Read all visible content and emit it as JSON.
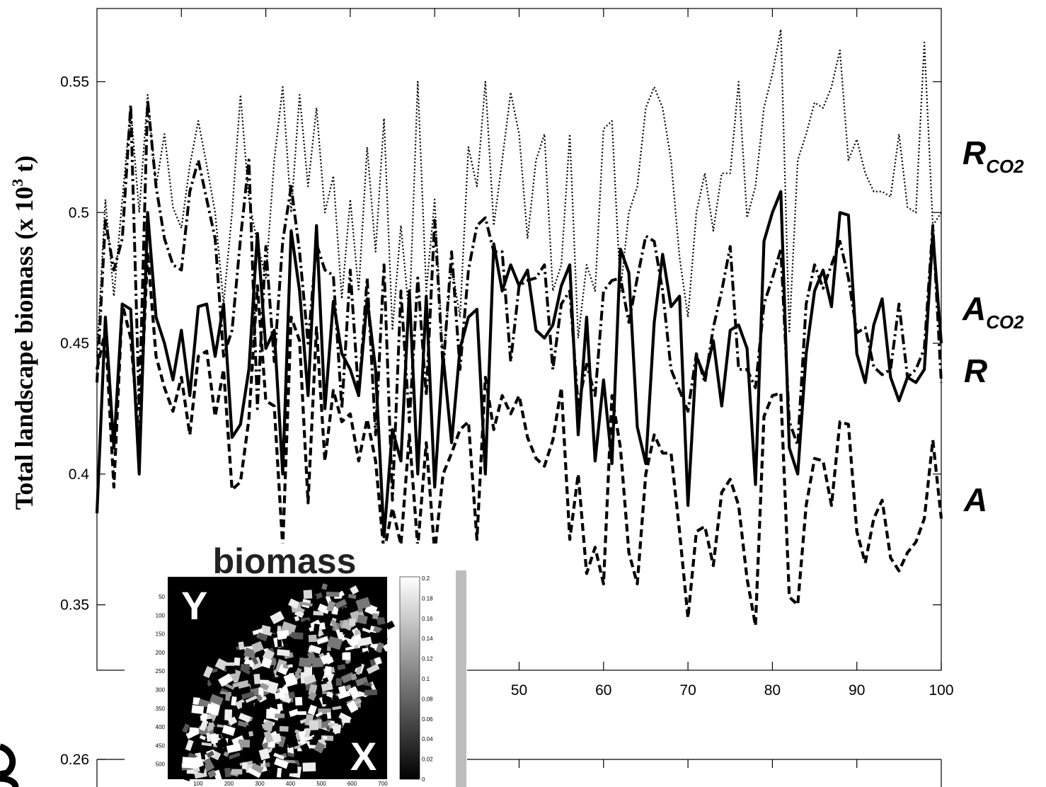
{
  "chart_data": [
    {
      "type": "line",
      "title": "",
      "xlabel": "",
      "ylabel": "Total landscape biomass (x 10",
      "ylabel_superscript": "3",
      "ylabel_tail": " t)",
      "xlim": [
        0,
        100
      ],
      "ylim": [
        0.325,
        0.578
      ],
      "grid": false,
      "y_ticks": [
        "0.35",
        "0.4",
        "0.45",
        "0.5",
        "0.55"
      ],
      "y_tick_values": [
        0.35,
        0.4,
        0.45,
        0.5,
        0.55
      ],
      "x_ticks": [
        "50",
        "60",
        "70",
        "80",
        "90",
        "100"
      ],
      "x_tick_values": [
        50,
        60,
        70,
        80,
        90,
        100
      ],
      "series": [
        {
          "name": "R",
          "name_sub": "CO2",
          "style": "dotted",
          "x": [
            0,
            1,
            2,
            3,
            4,
            5,
            6,
            7,
            8,
            9,
            10,
            11,
            12,
            13,
            14,
            15,
            16,
            17,
            18,
            19,
            20,
            21,
            22,
            23,
            24,
            25,
            26,
            27,
            28,
            29,
            30,
            31,
            32,
            33,
            34,
            35,
            36,
            37,
            38,
            39,
            40,
            41,
            42,
            43,
            44,
            45,
            46,
            47,
            48,
            49,
            50,
            51,
            52,
            53,
            54,
            55,
            56,
            57,
            58,
            59,
            60,
            61,
            62,
            63,
            64,
            65,
            66,
            67,
            68,
            69,
            70,
            71,
            72,
            73,
            74,
            75,
            76,
            77,
            78,
            79,
            80,
            81,
            82,
            83,
            84,
            85,
            86,
            87,
            88,
            89,
            90,
            91,
            92,
            93,
            94,
            95,
            96,
            97,
            98,
            99,
            100
          ],
          "y": [
            0.445,
            0.505,
            0.468,
            0.505,
            0.54,
            0.5,
            0.545,
            0.51,
            0.53,
            0.502,
            0.494,
            0.518,
            0.535,
            0.518,
            0.5,
            0.465,
            0.5,
            0.545,
            0.505,
            0.488,
            0.475,
            0.52,
            0.548,
            0.5,
            0.545,
            0.51,
            0.54,
            0.5,
            0.514,
            0.467,
            0.505,
            0.47,
            0.525,
            0.485,
            0.536,
            0.455,
            0.495,
            0.46,
            0.55,
            0.47,
            0.505,
            0.442,
            0.48,
            0.46,
            0.525,
            0.51,
            0.55,
            0.495,
            0.52,
            0.546,
            0.53,
            0.49,
            0.52,
            0.53,
            0.47,
            0.48,
            0.53,
            0.452,
            0.48,
            0.47,
            0.532,
            0.535,
            0.47,
            0.5,
            0.51,
            0.54,
            0.548,
            0.54,
            0.52,
            0.483,
            0.46,
            0.5,
            0.515,
            0.493,
            0.515,
            0.515,
            0.55,
            0.498,
            0.51,
            0.54,
            0.553,
            0.57,
            0.454,
            0.52,
            0.53,
            0.542,
            0.54,
            0.548,
            0.562,
            0.52,
            0.528,
            0.515,
            0.508,
            0.508,
            0.506,
            0.53,
            0.502,
            0.5,
            0.565,
            0.495,
            0.5
          ]
        },
        {
          "name": "A",
          "name_sub": "CO2",
          "style": "dashdot",
          "x": [
            0,
            1,
            2,
            3,
            4,
            5,
            6,
            7,
            8,
            9,
            10,
            11,
            12,
            13,
            14,
            15,
            16,
            17,
            18,
            19,
            20,
            21,
            22,
            23,
            24,
            25,
            26,
            27,
            28,
            29,
            30,
            31,
            32,
            33,
            34,
            35,
            36,
            37,
            38,
            39,
            40,
            41,
            42,
            43,
            44,
            45,
            46,
            47,
            48,
            49,
            50,
            51,
            52,
            53,
            54,
            55,
            56,
            57,
            58,
            59,
            60,
            61,
            62,
            63,
            64,
            65,
            66,
            67,
            68,
            69,
            70,
            71,
            72,
            73,
            74,
            75,
            76,
            77,
            78,
            79,
            80,
            81,
            82,
            83,
            84,
            85,
            86,
            87,
            88,
            89,
            90,
            91,
            92,
            93,
            94,
            95,
            96,
            97,
            98,
            99,
            100
          ],
          "y": [
            0.435,
            0.497,
            0.478,
            0.49,
            0.541,
            0.425,
            0.543,
            0.51,
            0.49,
            0.48,
            0.478,
            0.508,
            0.52,
            0.505,
            0.49,
            0.445,
            0.455,
            0.49,
            0.52,
            0.425,
            0.487,
            0.443,
            0.489,
            0.51,
            0.485,
            0.45,
            0.488,
            0.478,
            0.476,
            0.425,
            0.478,
            0.43,
            0.475,
            0.415,
            0.48,
            0.39,
            0.47,
            0.42,
            0.475,
            0.43,
            0.497,
            0.44,
            0.485,
            0.44,
            0.478,
            0.495,
            0.498,
            0.485,
            0.485,
            0.443,
            0.472,
            0.474,
            0.475,
            0.48,
            0.44,
            0.465,
            0.47,
            0.426,
            0.442,
            0.43,
            0.47,
            0.474,
            0.475,
            0.458,
            0.475,
            0.491,
            0.489,
            0.47,
            0.44,
            0.432,
            0.424,
            0.446,
            0.435,
            0.456,
            0.47,
            0.487,
            0.44,
            0.44,
            0.433,
            0.465,
            0.475,
            0.486,
            0.42,
            0.411,
            0.465,
            0.48,
            0.471,
            0.48,
            0.489,
            0.475,
            0.454,
            0.456,
            0.441,
            0.438,
            0.44,
            0.465,
            0.437,
            0.44,
            0.448,
            0.495,
            0.435
          ]
        },
        {
          "name": "R",
          "name_sub": "",
          "style": "solid",
          "x": [
            0,
            1,
            2,
            3,
            4,
            5,
            6,
            7,
            8,
            9,
            10,
            11,
            12,
            13,
            14,
            15,
            16,
            17,
            18,
            19,
            20,
            21,
            22,
            23,
            24,
            25,
            26,
            27,
            28,
            29,
            30,
            31,
            32,
            33,
            34,
            35,
            36,
            37,
            38,
            39,
            40,
            41,
            42,
            43,
            44,
            45,
            46,
            47,
            48,
            49,
            50,
            51,
            52,
            53,
            54,
            55,
            56,
            57,
            58,
            59,
            60,
            61,
            62,
            63,
            64,
            65,
            66,
            67,
            68,
            69,
            70,
            71,
            72,
            73,
            74,
            75,
            76,
            77,
            78,
            79,
            80,
            81,
            82,
            83,
            84,
            85,
            86,
            87,
            88,
            89,
            90,
            91,
            92,
            93,
            94,
            95,
            96,
            97,
            98,
            99,
            100
          ],
          "y": [
            0.385,
            0.46,
            0.41,
            0.465,
            0.463,
            0.4,
            0.5,
            0.46,
            0.45,
            0.436,
            0.455,
            0.43,
            0.464,
            0.465,
            0.445,
            0.465,
            0.414,
            0.419,
            0.44,
            0.492,
            0.448,
            0.455,
            0.4,
            0.493,
            0.47,
            0.43,
            0.495,
            0.425,
            0.466,
            0.446,
            0.44,
            0.43,
            0.467,
            0.44,
            0.376,
            0.417,
            0.405,
            0.47,
            0.4,
            0.468,
            0.395,
            0.445,
            0.412,
            0.448,
            0.46,
            0.463,
            0.4,
            0.488,
            0.47,
            0.48,
            0.472,
            0.478,
            0.455,
            0.452,
            0.457,
            0.472,
            0.48,
            0.415,
            0.46,
            0.405,
            0.436,
            0.404,
            0.486,
            0.477,
            0.418,
            0.404,
            0.458,
            0.484,
            0.464,
            0.468,
            0.388,
            0.445,
            0.437,
            0.451,
            0.426,
            0.455,
            0.457,
            0.448,
            0.396,
            0.489,
            0.5,
            0.508,
            0.41,
            0.4,
            0.446,
            0.47,
            0.478,
            0.464,
            0.5,
            0.499,
            0.446,
            0.435,
            0.457,
            0.467,
            0.437,
            0.428,
            0.437,
            0.435,
            0.44,
            0.492,
            0.45
          ]
        },
        {
          "name": "A",
          "name_sub": "",
          "style": "dashed",
          "x": [
            0,
            1,
            2,
            3,
            4,
            5,
            6,
            7,
            8,
            9,
            10,
            11,
            12,
            13,
            14,
            15,
            16,
            17,
            18,
            19,
            20,
            21,
            22,
            23,
            24,
            25,
            26,
            27,
            28,
            29,
            30,
            31,
            32,
            33,
            34,
            35,
            36,
            37,
            38,
            39,
            40,
            41,
            42,
            43,
            44,
            45,
            46,
            47,
            48,
            49,
            50,
            51,
            52,
            53,
            54,
            55,
            56,
            57,
            58,
            59,
            60,
            61,
            62,
            63,
            64,
            65,
            66,
            67,
            68,
            69,
            70,
            71,
            72,
            73,
            74,
            75,
            76,
            77,
            78,
            79,
            80,
            81,
            82,
            83,
            84,
            85,
            86,
            87,
            88,
            89,
            90,
            91,
            92,
            93,
            94,
            95,
            96,
            97,
            98,
            99,
            100
          ],
          "y": [
            0.44,
            0.455,
            0.395,
            0.465,
            0.452,
            0.413,
            0.485,
            0.445,
            0.433,
            0.424,
            0.437,
            0.415,
            0.445,
            0.447,
            0.422,
            0.44,
            0.394,
            0.397,
            0.421,
            0.472,
            0.428,
            0.426,
            0.372,
            0.46,
            0.451,
            0.389,
            0.456,
            0.405,
            0.432,
            0.42,
            0.423,
            0.405,
            0.421,
            0.405,
            0.37,
            0.387,
            0.373,
            0.415,
            0.372,
            0.412,
            0.37,
            0.4,
            0.408,
            0.417,
            0.42,
            0.375,
            0.437,
            0.417,
            0.43,
            0.423,
            0.43,
            0.414,
            0.406,
            0.403,
            0.413,
            0.433,
            0.375,
            0.4,
            0.362,
            0.372,
            0.358,
            0.43,
            0.41,
            0.37,
            0.358,
            0.4,
            0.415,
            0.408,
            0.408,
            0.378,
            0.345,
            0.378,
            0.38,
            0.365,
            0.393,
            0.398,
            0.388,
            0.36,
            0.342,
            0.422,
            0.43,
            0.431,
            0.353,
            0.35,
            0.388,
            0.406,
            0.405,
            0.388,
            0.42,
            0.419,
            0.378,
            0.366,
            0.383,
            0.39,
            0.368,
            0.363,
            0.37,
            0.374,
            0.383,
            0.413,
            0.383
          ]
        }
      ]
    },
    {
      "type": "line",
      "title": "",
      "partial": true,
      "y_ticks": [
        "0.26"
      ],
      "y_tick_values": [
        0.26
      ]
    }
  ],
  "inset": {
    "title": "biomass",
    "label_y": "Y",
    "label_x": "X",
    "y_ticks": [
      "50",
      "100",
      "150",
      "200",
      "250",
      "300",
      "350",
      "400",
      "450",
      "500"
    ],
    "x_ticks": [
      "100",
      "200",
      "300",
      "400",
      "500",
      "600",
      "700"
    ],
    "colorbar_ticks": [
      "0.2",
      "0.18",
      "0.16",
      "0.14",
      "0.12",
      "0.1",
      "0.08",
      "0.06",
      "0.04",
      "0.02",
      "0"
    ]
  }
}
